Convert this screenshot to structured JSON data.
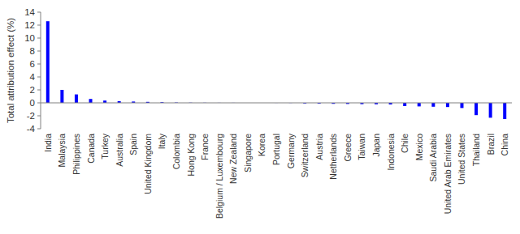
{
  "chart_data": {
    "type": "bar",
    "y_label": "Total attribution effect (%)",
    "categories": [
      "India",
      "Malaysia",
      "Philippines",
      "Canada",
      "Turkey",
      "Australia",
      "Spain",
      "United Kingdom",
      "Italy",
      "Colombia",
      "Hong Kong",
      "France",
      "Belgium / Luxembourg",
      "New Zealand",
      "Singapore",
      "Korea",
      "Portugal",
      "Germany",
      "Switzerland",
      "Austria",
      "Netherlands",
      "Greece",
      "Taiwan",
      "Japan",
      "Indonesia",
      "Chile",
      "Mexico",
      "Saudi Arabia",
      "United Arab Emirates",
      "United States",
      "Thailand",
      "Brazil",
      "China"
    ],
    "values": [
      12.6,
      2.0,
      1.3,
      0.6,
      0.35,
      0.25,
      0.2,
      0.15,
      0.1,
      0.05,
      0.03,
      0.02,
      0.01,
      0.01,
      0.0,
      0.0,
      -0.01,
      -0.02,
      -0.1,
      -0.12,
      -0.15,
      -0.17,
      -0.2,
      -0.22,
      -0.25,
      -0.5,
      -0.55,
      -0.6,
      -0.65,
      -0.8,
      -1.9,
      -2.3,
      -2.5
    ],
    "color": "#0000ff",
    "ylim": [
      -4,
      14
    ],
    "yticks": [
      -4,
      -2,
      0,
      2,
      4,
      6,
      8,
      10,
      12,
      14
    ],
    "grid": false
  }
}
